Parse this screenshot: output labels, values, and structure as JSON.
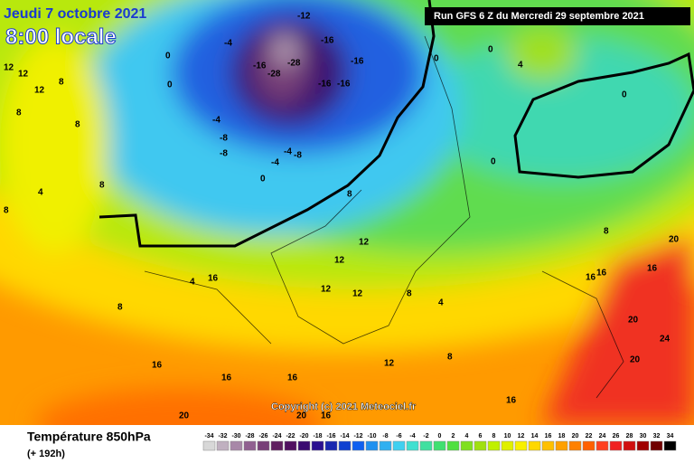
{
  "header": {
    "date": "Jeudi 7 octobre 2021",
    "time": "8:00 locale",
    "run": "Run GFS 6 Z du Mercredi 29 septembre 2021"
  },
  "copyright": "Copyright (c) 2021 Meteociel.fr",
  "footer": {
    "title": "Température 850hPa",
    "lead": "(+ 192h)"
  },
  "contour_labels": [
    -12,
    -16,
    -16,
    -28,
    -28,
    -16,
    -16,
    -16,
    -4,
    -4,
    -8,
    -8,
    -4,
    -8,
    -4,
    0,
    0,
    0,
    0,
    0,
    0,
    0,
    12,
    12,
    12,
    8,
    8,
    8,
    4,
    4,
    16,
    12,
    12,
    12,
    12,
    4,
    8,
    8,
    16,
    16,
    16,
    12,
    8,
    16,
    20,
    20,
    16,
    20,
    24,
    20,
    16,
    16,
    20,
    8,
    16,
    4,
    8,
    8,
    8
  ],
  "scale": {
    "values": [
      -34,
      -32,
      -30,
      -28,
      -26,
      -24,
      -22,
      -20,
      -18,
      -16,
      -14,
      -12,
      -10,
      -8,
      -6,
      -4,
      -2,
      0,
      2,
      4,
      6,
      8,
      10,
      12,
      14,
      16,
      18,
      20,
      22,
      24,
      26,
      28,
      30,
      32,
      34
    ],
    "colors": [
      "#d8d8d8",
      "#c0b0c0",
      "#a888a8",
      "#906090",
      "#784078",
      "#602060",
      "#501060",
      "#3a0a70",
      "#2a1090",
      "#1828b0",
      "#1040d0",
      "#1060f0",
      "#2090f0",
      "#30b0f0",
      "#40d0f0",
      "#40e0d0",
      "#40e0a0",
      "#40e070",
      "#50e040",
      "#80e020",
      "#a0e010",
      "#c0f000",
      "#e0f000",
      "#f8f000",
      "#ffd800",
      "#ffc000",
      "#ffa000",
      "#ff8000",
      "#ff6000",
      "#ff4020",
      "#f02020",
      "#d01010",
      "#a00000",
      "#700000",
      "#000000"
    ]
  }
}
